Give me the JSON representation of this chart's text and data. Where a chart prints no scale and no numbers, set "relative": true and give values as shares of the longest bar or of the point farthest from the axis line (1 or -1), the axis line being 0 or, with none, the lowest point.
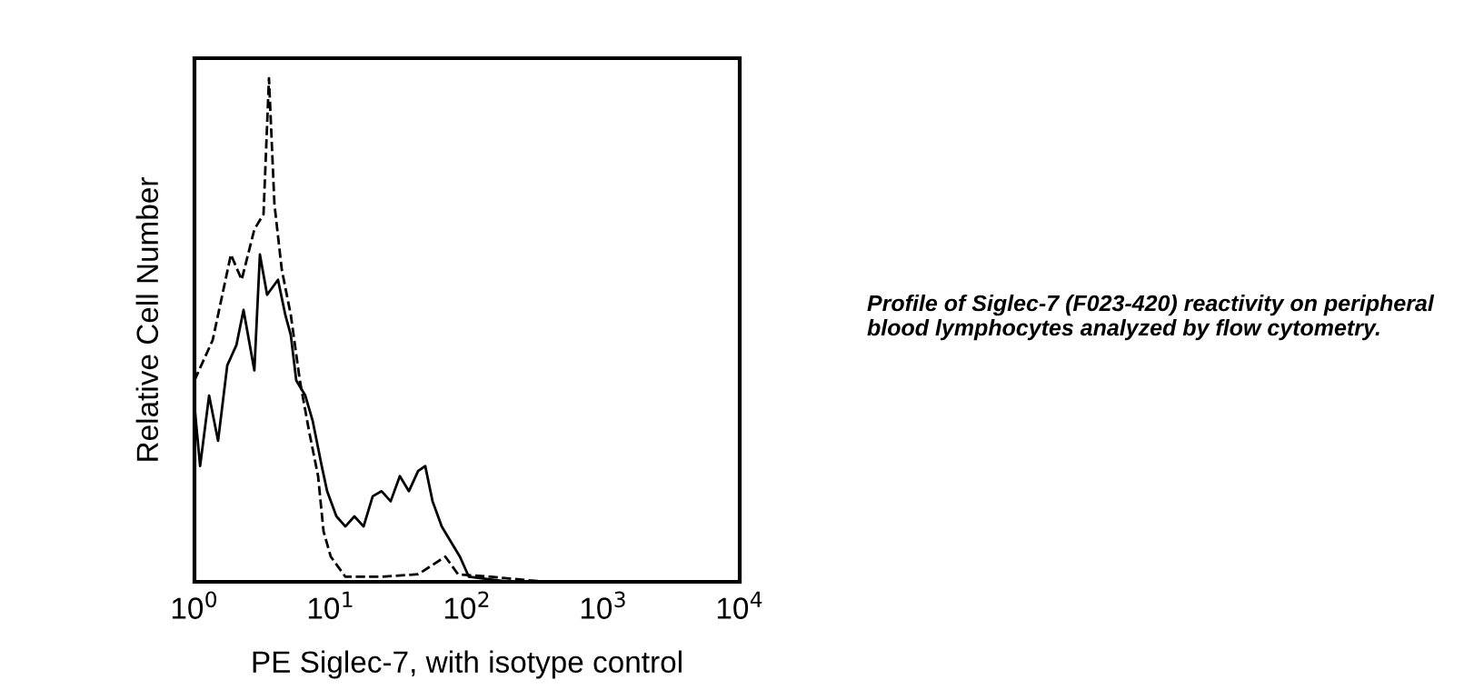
{
  "chart_data": {
    "type": "line",
    "relative": true,
    "log": "x",
    "xlabel": "PE Siglec-7, with isotype control",
    "ylabel": "Relative Cell Number",
    "xlim": [
      1,
      10000
    ],
    "xticks": [
      {
        "value": 1,
        "label": "10$^{0}$"
      },
      {
        "value": 10,
        "label": "10$^{1}$"
      },
      {
        "value": 100,
        "label": "10$^{2}$"
      },
      {
        "value": 1000,
        "label": "10$^{3}$"
      },
      {
        "value": 10000,
        "label": "10$^{4}$"
      }
    ],
    "grid": false,
    "legend": false,
    "marker": "none",
    "tick_labels": "x",
    "annotations": [
      "Profile of Siglec-7 (F023-420) reactivity on peripheral blood lymphocytes analyzed by flow cytometry."
    ],
    "series": [
      {
        "color": "#000000",
        "line_style": "solid",
        "x": [
          1.0,
          1.1,
          1.28,
          1.49,
          1.74,
          2.03,
          2.29,
          2.75,
          3.02,
          3.41,
          4.1,
          4.64,
          5.09,
          5.58,
          6.5,
          7.36,
          8.58,
          9.4,
          11.0,
          12.8,
          14.9,
          17.4,
          20.3,
          23.6,
          27.5,
          32.1,
          37.4,
          43.7,
          49.3,
          55.8,
          65.1,
          75.9,
          88.5,
          103,
          203
        ],
        "values": [
          0.35,
          0.23,
          0.37,
          0.28,
          0.43,
          0.47,
          0.54,
          0.42,
          0.65,
          0.57,
          0.6,
          0.53,
          0.49,
          0.4,
          0.37,
          0.32,
          0.23,
          0.18,
          0.13,
          0.11,
          0.13,
          0.11,
          0.17,
          0.18,
          0.16,
          0.21,
          0.18,
          0.22,
          0.23,
          0.16,
          0.11,
          0.08,
          0.05,
          0.01,
          0.0
        ]
      },
      {
        "color": "#000000",
        "line_style": "dashed",
        "x": [
          1.0,
          1.36,
          1.63,
          1.85,
          2.22,
          2.75,
          3.21,
          3.52,
          3.86,
          4.37,
          5.09,
          5.93,
          6.92,
          8.07,
          8.85,
          10,
          12.8,
          23.6,
          43.7,
          69.2,
          85.8,
          149,
          374
        ],
        "values": [
          0.4,
          0.48,
          0.58,
          0.65,
          0.6,
          0.7,
          0.73,
          1.0,
          0.75,
          0.62,
          0.53,
          0.4,
          0.3,
          0.21,
          0.1,
          0.05,
          0.01,
          0.01,
          0.015,
          0.05,
          0.015,
          0.01,
          0.0
        ]
      }
    ]
  }
}
